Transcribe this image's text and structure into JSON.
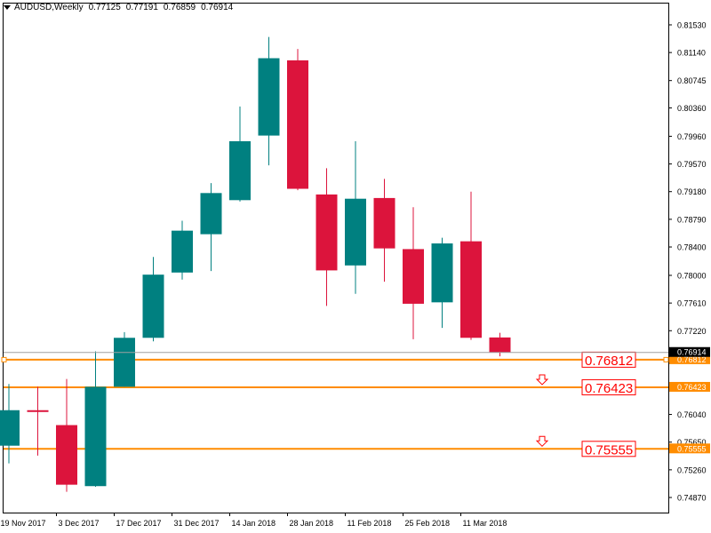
{
  "header": {
    "symbol": "AUDUSD,Weekly",
    "open": "0.77125",
    "high": "0.77191",
    "low": "0.76859",
    "close": "0.76914"
  },
  "colors": {
    "bull": "#008080",
    "bear": "#DC143C",
    "level": "#FF8C00",
    "label": "#FF0000",
    "axis": "#000000",
    "current_price_line": "#A0A0A0"
  },
  "chart_data": {
    "type": "candlestick",
    "symbol": "AUDUSD",
    "timeframe": "Weekly",
    "ylim": [
      0.7467,
      0.8168
    ],
    "y_ticks": [
      "0.81530",
      "0.81140",
      "0.80745",
      "0.80360",
      "0.79960",
      "0.79570",
      "0.79180",
      "0.78790",
      "0.78400",
      "0.78000",
      "0.77610",
      "0.77220",
      "0.76820",
      "0.76430",
      "0.76040",
      "0.75650",
      "0.75260",
      "0.74870"
    ],
    "x_ticks": [
      {
        "i": 0,
        "label": "19 Nov 2017"
      },
      {
        "i": 2,
        "label": "3 Dec 2017"
      },
      {
        "i": 4,
        "label": "17 Dec 2017"
      },
      {
        "i": 6,
        "label": "31 Dec 2017"
      },
      {
        "i": 8,
        "label": "14 Jan 2018"
      },
      {
        "i": 10,
        "label": "28 Jan 2018"
      },
      {
        "i": 12,
        "label": "11 Feb 2018"
      },
      {
        "i": 14,
        "label": "25 Feb 2018"
      },
      {
        "i": 16,
        "label": "11 Mar 2018"
      }
    ],
    "candles": [
      {
        "o": 0.756,
        "h": 0.7647,
        "l": 0.7535,
        "c": 0.761
      },
      {
        "o": 0.761,
        "h": 0.7643,
        "l": 0.7546,
        "c": 0.7608
      },
      {
        "o": 0.7589,
        "h": 0.7654,
        "l": 0.7495,
        "c": 0.7505
      },
      {
        "o": 0.7503,
        "h": 0.7693,
        "l": 0.7502,
        "c": 0.7643
      },
      {
        "o": 0.7643,
        "h": 0.772,
        "l": 0.7643,
        "c": 0.7712
      },
      {
        "o": 0.7712,
        "h": 0.7826,
        "l": 0.7707,
        "c": 0.7801
      },
      {
        "o": 0.7804,
        "h": 0.7877,
        "l": 0.7794,
        "c": 0.7863
      },
      {
        "o": 0.7858,
        "h": 0.793,
        "l": 0.7806,
        "c": 0.7916
      },
      {
        "o": 0.7906,
        "h": 0.8038,
        "l": 0.7904,
        "c": 0.7989
      },
      {
        "o": 0.7997,
        "h": 0.8136,
        "l": 0.7955,
        "c": 0.8106
      },
      {
        "o": 0.8103,
        "h": 0.8119,
        "l": 0.792,
        "c": 0.7922
      },
      {
        "o": 0.7914,
        "h": 0.7951,
        "l": 0.7757,
        "c": 0.7807
      },
      {
        "o": 0.7814,
        "h": 0.7989,
        "l": 0.7774,
        "c": 0.7908
      },
      {
        "o": 0.7909,
        "h": 0.7936,
        "l": 0.7791,
        "c": 0.7838
      },
      {
        "o": 0.7837,
        "h": 0.7896,
        "l": 0.771,
        "c": 0.776
      },
      {
        "o": 0.7762,
        "h": 0.7853,
        "l": 0.7726,
        "c": 0.7845
      },
      {
        "o": 0.7848,
        "h": 0.7918,
        "l": 0.7709,
        "c": 0.7712
      },
      {
        "o": 0.77125,
        "h": 0.77191,
        "l": 0.76859,
        "c": 0.76914
      }
    ],
    "current_price": "0.76914",
    "levels": [
      {
        "label": "0.76812",
        "axis_label": "0.76812",
        "value": 0.76812,
        "arrow": false
      },
      {
        "label": "0.76423",
        "axis_label": "0.76423",
        "value": 0.76423,
        "arrow": true
      },
      {
        "label": "0.75555",
        "axis_label": "0.75555",
        "value": 0.75555,
        "arrow": true
      }
    ]
  }
}
